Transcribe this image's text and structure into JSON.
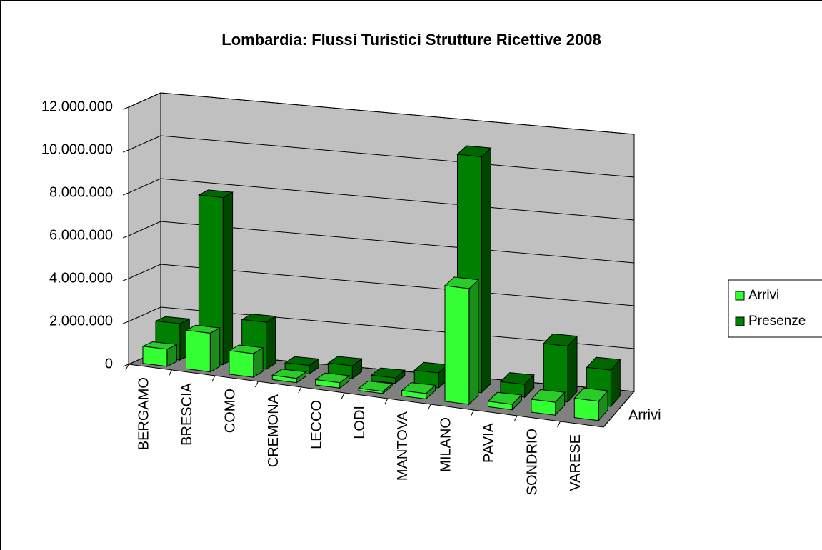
{
  "chart_data": {
    "type": "bar3d",
    "title": "Lombardia: Flussi Turistici Strutture Ricettive 2008",
    "categories": [
      "BERGAMO",
      "BRESCIA",
      "COMO",
      "CREMONA",
      "LECCO",
      "LODI",
      "MANTOVA",
      "MILANO",
      "PAVIA",
      "SONDRIO",
      "VARESE"
    ],
    "series": [
      {
        "name": "Arrivi",
        "color": "#33ff33",
        "values": [
          800000,
          1800000,
          1100000,
          200000,
          250000,
          100000,
          250000,
          5400000,
          250000,
          600000,
          900000
        ]
      },
      {
        "name": "Presenze",
        "color": "#008000",
        "values": [
          1700000,
          7800000,
          2200000,
          400000,
          600000,
          250000,
          700000,
          11000000,
          600000,
          2600000,
          1700000
        ]
      }
    ],
    "series_axis_label": "Arrivi",
    "ylim": [
      0,
      12000000
    ],
    "yticks": [
      0,
      {
        "value": 2000000,
        "label": "2.000.000"
      },
      {
        "value": 4000000,
        "label": "4.000.000"
      },
      {
        "value": 6000000,
        "label": "6.000.000"
      },
      {
        "value": 8000000,
        "label": "8.000.000"
      },
      {
        "value": 10000000,
        "label": "10.000.000"
      },
      {
        "value": 12000000,
        "label": "12.000.000"
      }
    ],
    "grid": true,
    "legend": "right"
  }
}
